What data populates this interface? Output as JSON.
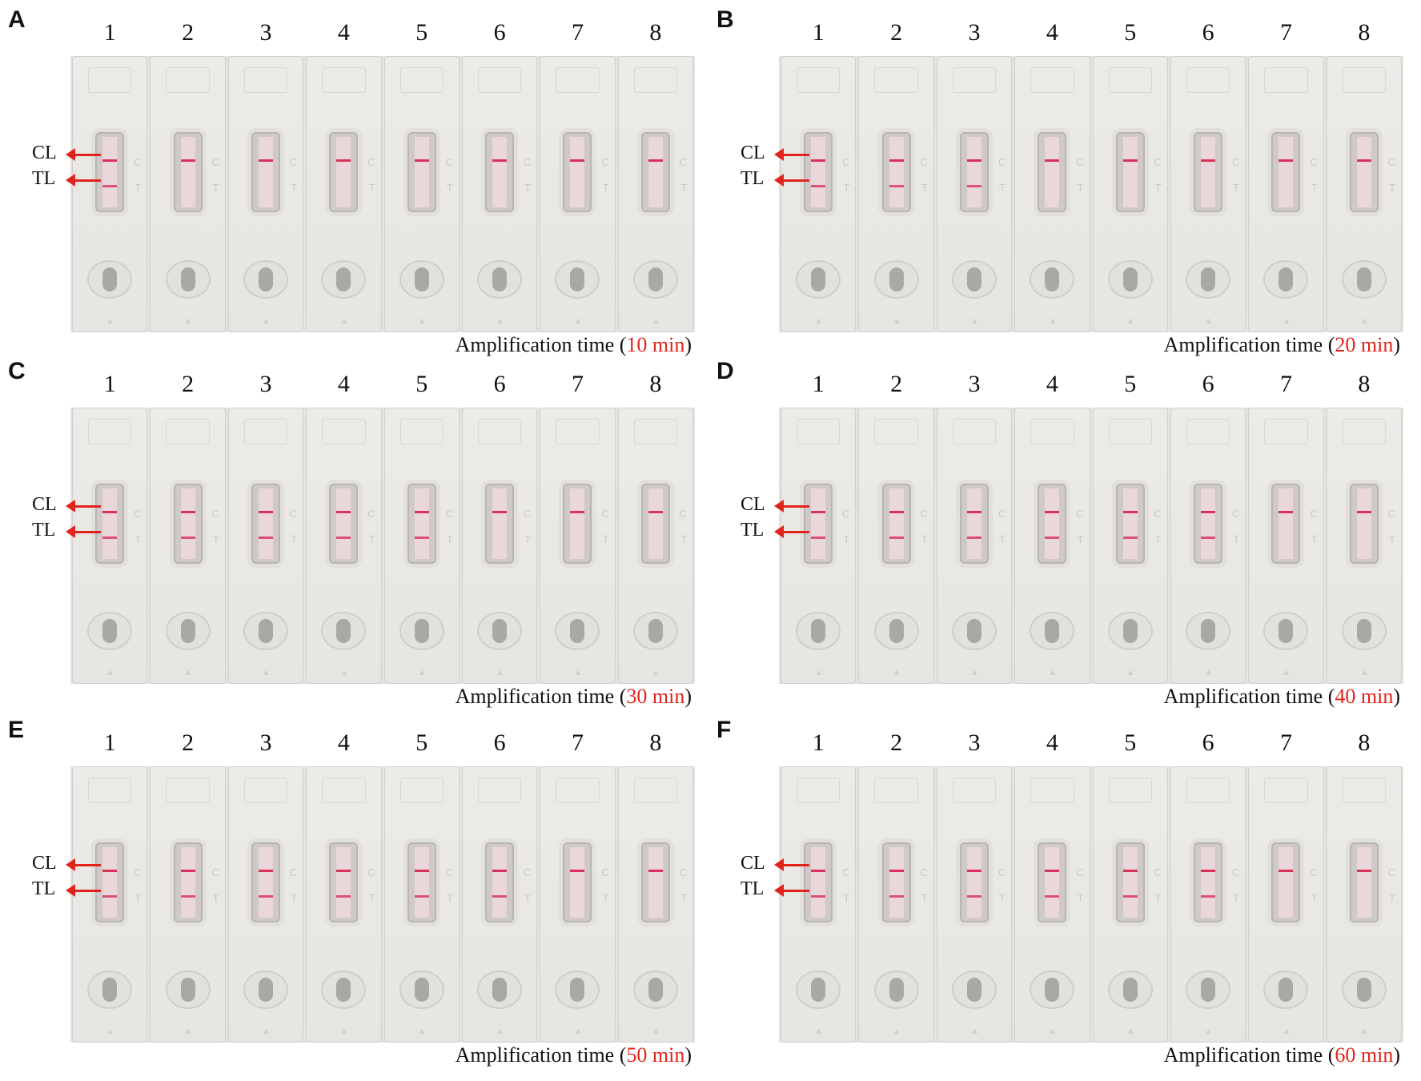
{
  "panels": [
    {
      "letter": "A",
      "lanes": [
        "1",
        "2",
        "3",
        "4",
        "5",
        "6",
        "7",
        "8"
      ],
      "cl_label": "CL",
      "tl_label": "TL",
      "caption_prefix": "Amplification time (",
      "caption_time": "10 min",
      "caption_suffix": ")",
      "test_line_visible": [
        true,
        false,
        false,
        false,
        false,
        false,
        false,
        false
      ]
    },
    {
      "letter": "B",
      "lanes": [
        "1",
        "2",
        "3",
        "4",
        "5",
        "6",
        "7",
        "8"
      ],
      "cl_label": "CL",
      "tl_label": "TL",
      "caption_prefix": "Amplification time (",
      "caption_time": "20 min",
      "caption_suffix": ")",
      "test_line_visible": [
        true,
        true,
        true,
        false,
        false,
        false,
        false,
        false
      ]
    },
    {
      "letter": "C",
      "lanes": [
        "1",
        "2",
        "3",
        "4",
        "5",
        "6",
        "7",
        "8"
      ],
      "cl_label": "CL",
      "tl_label": "TL",
      "caption_prefix": "Amplification time (",
      "caption_time": "30 min",
      "caption_suffix": ")",
      "test_line_visible": [
        true,
        true,
        true,
        true,
        true,
        false,
        false,
        false
      ]
    },
    {
      "letter": "D",
      "lanes": [
        "1",
        "2",
        "3",
        "4",
        "5",
        "6",
        "7",
        "8"
      ],
      "cl_label": "CL",
      "tl_label": "TL",
      "caption_prefix": "Amplification time (",
      "caption_time": "40 min",
      "caption_suffix": ")",
      "test_line_visible": [
        true,
        true,
        true,
        true,
        true,
        true,
        false,
        false
      ]
    },
    {
      "letter": "E",
      "lanes": [
        "1",
        "2",
        "3",
        "4",
        "5",
        "6",
        "7",
        "8"
      ],
      "cl_label": "CL",
      "tl_label": "TL",
      "caption_prefix": "Amplification time (",
      "caption_time": "50 min",
      "caption_suffix": ")",
      "test_line_visible": [
        true,
        true,
        true,
        true,
        true,
        true,
        false,
        false
      ]
    },
    {
      "letter": "F",
      "lanes": [
        "1",
        "2",
        "3",
        "4",
        "5",
        "6",
        "7",
        "8"
      ],
      "cl_label": "CL",
      "tl_label": "TL",
      "caption_prefix": "Amplification time (",
      "caption_time": "60 min",
      "caption_suffix": ")",
      "test_line_visible": [
        true,
        true,
        true,
        true,
        true,
        true,
        false,
        false
      ]
    }
  ],
  "strip_marks": {
    "c": "C",
    "t": "T"
  },
  "colors": {
    "arrow": "#e0241c",
    "band": "#d8315b",
    "caption_time": "#e0241c"
  }
}
